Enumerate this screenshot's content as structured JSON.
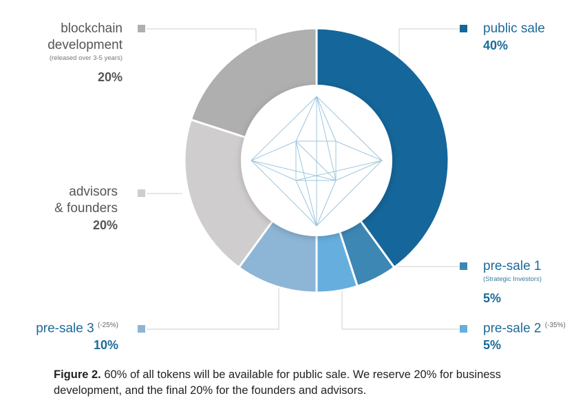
{
  "chart_data": {
    "type": "pie",
    "style": "donut",
    "slices": [
      {
        "label": "public sale",
        "value": 40,
        "display": "40%",
        "color": "#15669a"
      },
      {
        "label": "pre-sale 1",
        "note": "(Strategic Investors)",
        "value": 5,
        "display": "5%",
        "color": "#3d87b5"
      },
      {
        "label": "pre-sale 2",
        "note": "(-35%)",
        "value": 5,
        "display": "5%",
        "color": "#66aede"
      },
      {
        "label": "pre-sale 3",
        "note": "(-25%)",
        "value": 10,
        "display": "10%",
        "color": "#8db5d6"
      },
      {
        "label": "advisors & founders",
        "value": 20,
        "display": "20%",
        "color": "#cfcdce"
      },
      {
        "label": "blockchain development",
        "note": "(released over 3-5 years)",
        "value": 20,
        "display": "20%",
        "color": "#afafaf"
      }
    ],
    "labels": {
      "public_sale": {
        "name": "public sale",
        "pct": "40%"
      },
      "pre_sale_1": {
        "name": "pre-sale 1",
        "sub": "(Strategic Investors)",
        "pct": "5%"
      },
      "pre_sale_2": {
        "name": "pre-sale 2",
        "sup": "(-35%)",
        "pct": "5%"
      },
      "pre_sale_3": {
        "name": "pre-sale 3",
        "sup": "(-25%)",
        "pct": "10%"
      },
      "advisors": {
        "line1": "advisors",
        "line2": "& founders",
        "pct": "20%"
      },
      "blockchain": {
        "line1": "blockchain",
        "line2": "development",
        "sub": "(released over 3-5 years)",
        "pct": "20%"
      }
    },
    "colors": {
      "gray_text": "#555555",
      "blue_text": "#1b6a98",
      "leader": "#cccccc",
      "crystal": "#9cc6dd"
    }
  },
  "caption": {
    "label": "Figure 2.",
    "text": " 60% of all tokens will be available for public sale. We reserve 20% for business development, and the final 20% for the founders and advisors."
  }
}
